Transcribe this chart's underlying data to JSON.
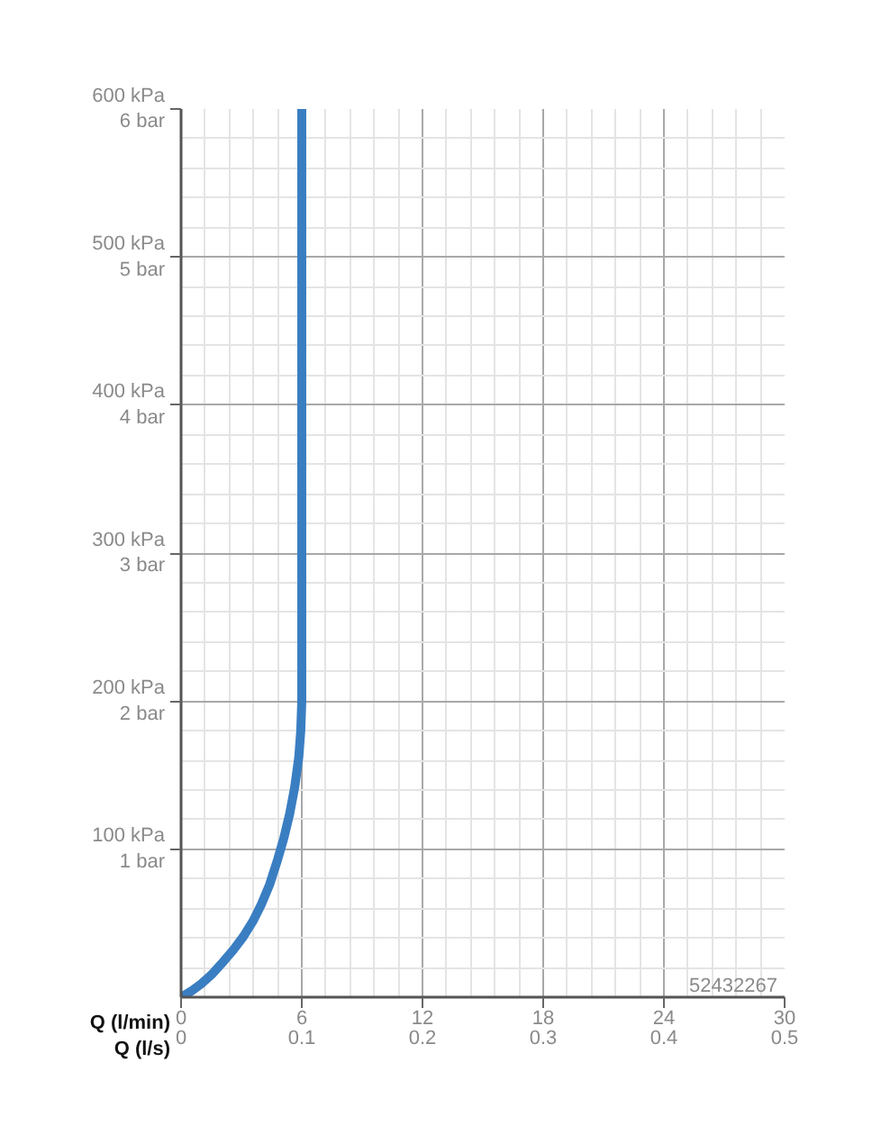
{
  "chart_data": {
    "type": "line",
    "xlabel": "Q (l/min)",
    "x2label": "Q (l/s)",
    "x": [
      0,
      0.5,
      1.0,
      1.5,
      2.1,
      2.6,
      3.1,
      3.6,
      4.0,
      4.4,
      4.8,
      5.1,
      5.4,
      5.65,
      5.85,
      5.95,
      6,
      6
    ],
    "series": [
      {
        "color": "#3a7ec2",
        "values": [
          0,
          4,
          9,
          15,
          24,
          32,
          41,
          52,
          63,
          76,
          93,
          107,
          124,
          142,
          162,
          180,
          200,
          600
        ]
      }
    ],
    "xlim": [
      0,
      30
    ],
    "xticks": [
      0,
      6,
      12,
      18,
      24,
      30
    ],
    "x2lim": [
      0,
      0.5
    ],
    "x2ticks": [
      0,
      0.1,
      0.2,
      0.3,
      0.4,
      0.5
    ],
    "ylim": [
      0,
      600
    ],
    "yticks": [
      {
        "value": 100,
        "label": "100 kPa"
      },
      {
        "value": 200,
        "label": "200 kPa"
      },
      {
        "value": 300,
        "label": "300 kPa"
      },
      {
        "value": 400,
        "label": "400 kPa"
      },
      {
        "value": 500,
        "label": "500 kPa"
      },
      {
        "value": 600,
        "label": "600 kPa"
      }
    ],
    "y2lim": [
      0,
      6
    ],
    "y2ticks": [
      {
        "value": 1,
        "label": "1 bar"
      },
      {
        "value": 2,
        "label": "2 bar"
      },
      {
        "value": 3,
        "label": "3 bar"
      },
      {
        "value": 4,
        "label": "4 bar"
      },
      {
        "value": 5,
        "label": "5 bar"
      },
      {
        "value": 6,
        "label": "6 bar"
      }
    ],
    "grid": true,
    "marker": "none",
    "line_style": "solid",
    "annotations": [
      "52432267"
    ]
  }
}
